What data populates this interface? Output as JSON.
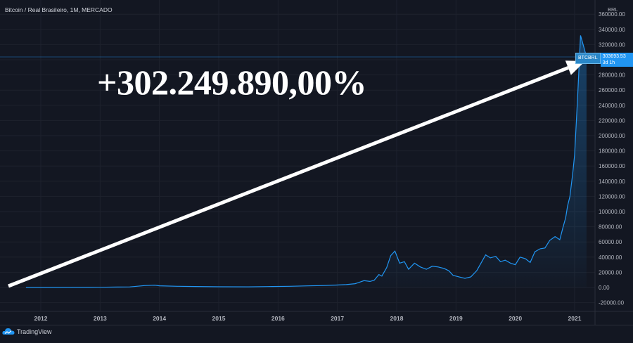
{
  "header": {
    "symbol_title": "Bitcoin / Real Brasileiro, 1M, MERCADO",
    "currency": "BRL"
  },
  "annotation": {
    "text": "+302.249.890,00%"
  },
  "price_tag": {
    "symbol": "BTCBRL",
    "price": "303693.53",
    "countdown": "3d 1h"
  },
  "branding": {
    "name": "TradingView",
    "icon": "tradingview-cloud-icon"
  },
  "colors": {
    "background": "#131722",
    "line": "#2196f3",
    "arrow": "#ffffff",
    "grid": "#1e222d"
  },
  "chart_data": {
    "type": "area",
    "title": "Bitcoin / Real Brasileiro, 1M, MERCADO",
    "xlabel": "",
    "ylabel": "",
    "ylim": [
      -30000,
      360000
    ],
    "xlim": [
      2011.7,
      2021.4
    ],
    "grid": true,
    "y_ticks": [
      360000,
      340000,
      320000,
      300000,
      280000,
      260000,
      240000,
      220000,
      200000,
      180000,
      160000,
      140000,
      120000,
      100000,
      80000,
      60000,
      40000,
      20000,
      0,
      -20000
    ],
    "y_tick_labels": [
      "360000.00",
      "340000.00",
      "320000.00",
      "300000.00",
      "280000.00",
      "260000.00",
      "240000.00",
      "220000.00",
      "200000.00",
      "180000.00",
      "160000.00",
      "140000.00",
      "120000.00",
      "100000.00",
      "80000.00",
      "60000.00",
      "40000.00",
      "20000.00",
      "0.00",
      "-20000.00"
    ],
    "x_ticks": [
      2012,
      2013,
      2014,
      2015,
      2016,
      2017,
      2018,
      2019,
      2020,
      2021
    ],
    "x_tick_labels": [
      "2012",
      "2013",
      "2014",
      "2015",
      "2016",
      "2017",
      "2018",
      "2019",
      "2020",
      "2021"
    ],
    "current_price": 303693.53,
    "x": [
      2011.75,
      2012.0,
      2012.5,
      2013.0,
      2013.3,
      2013.5,
      2013.75,
      2013.92,
      2014.0,
      2014.3,
      2014.6,
      2015.0,
      2015.5,
      2015.9,
      2016.2,
      2016.5,
      2016.8,
      2017.0,
      2017.15,
      2017.3,
      2017.45,
      2017.55,
      2017.62,
      2017.7,
      2017.75,
      2017.83,
      2017.9,
      2017.97,
      2018.05,
      2018.13,
      2018.2,
      2018.3,
      2018.4,
      2018.5,
      2018.6,
      2018.7,
      2018.8,
      2018.88,
      2018.95,
      2019.05,
      2019.15,
      2019.25,
      2019.35,
      2019.45,
      2019.5,
      2019.58,
      2019.67,
      2019.75,
      2019.83,
      2019.92,
      2020.0,
      2020.08,
      2020.17,
      2020.25,
      2020.33,
      2020.42,
      2020.5,
      2020.58,
      2020.67,
      2020.75,
      2020.8,
      2020.85,
      2020.88,
      2020.92,
      2020.97,
      2021.0,
      2021.05,
      2021.1,
      2021.15,
      2021.2
    ],
    "values": [
      30,
      40,
      80,
      300,
      600,
      700,
      2500,
      3000,
      2200,
      1600,
      1300,
      900,
      850,
      1300,
      1600,
      2100,
      2600,
      3200,
      3800,
      5000,
      9000,
      8000,
      9500,
      17000,
      15000,
      26000,
      42000,
      48000,
      32000,
      34000,
      24000,
      32000,
      27000,
      24000,
      28000,
      27000,
      25000,
      22000,
      16000,
      14000,
      12000,
      14000,
      22000,
      36000,
      43000,
      39000,
      41000,
      34000,
      36000,
      32000,
      30000,
      40000,
      38000,
      33000,
      47000,
      51000,
      52000,
      62000,
      67000,
      63000,
      78000,
      92000,
      107000,
      120000,
      152000,
      175000,
      250000,
      332000,
      318000,
      303693.53
    ]
  }
}
